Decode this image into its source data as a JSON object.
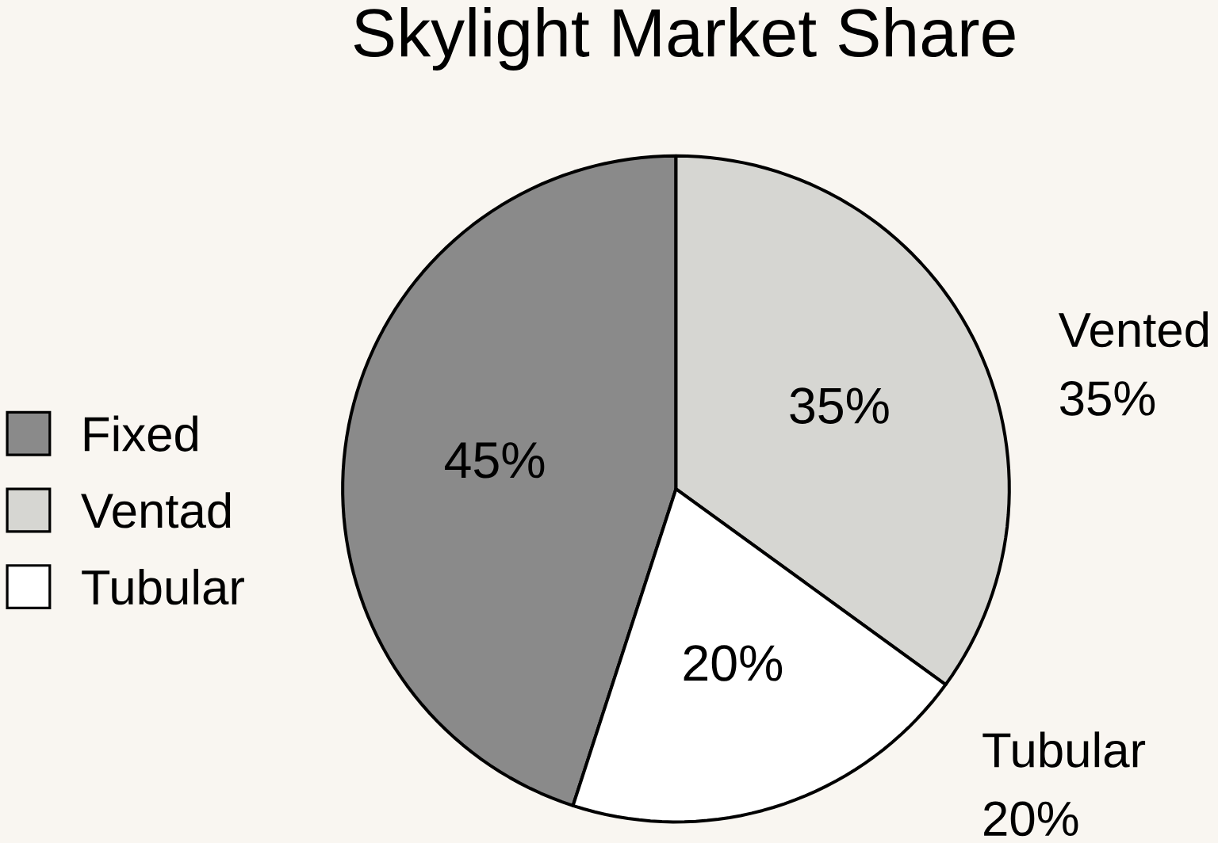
{
  "chart_data": {
    "type": "pie",
    "title": "Skylight Market Share",
    "categories": [
      "Fixed",
      "Ventad",
      "Tubular"
    ],
    "values": [
      45,
      35,
      20
    ],
    "colors": [
      "#8a8a8a",
      "#d6d6d2",
      "#ffffff"
    ],
    "value_labels": [
      "45%",
      "35%",
      "20%"
    ],
    "annotations": [
      "Vented",
      "35%",
      "Tubular",
      "20%"
    ],
    "legend": "left"
  }
}
